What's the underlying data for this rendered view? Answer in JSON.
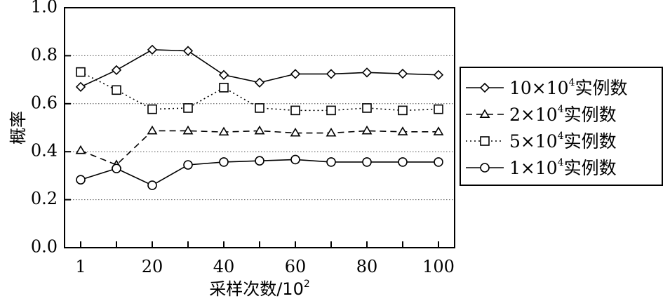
{
  "chart_data": {
    "type": "line",
    "title": "",
    "xlabel": "采样次数/10",
    "xlabel_sup": "2",
    "ylabel": "概率",
    "x_tick_labels": [
      "1",
      "20",
      "40",
      "60",
      "80",
      "100"
    ],
    "x_tick_count": 11,
    "y_ticks": [
      0.0,
      0.2,
      0.4,
      0.6,
      0.8,
      1.0
    ],
    "y_tick_labels": [
      "0.0",
      "0.2",
      "0.4",
      "0.6",
      "0.8",
      "1.0"
    ],
    "ylim": [
      0,
      1.0
    ],
    "grid": "horizontal dotted",
    "legend_position": "right",
    "series": [
      {
        "name": "10×10⁴实例数",
        "legend_main": "10×10",
        "legend_sup": "4",
        "legend_suffix": "实例数",
        "marker": "diamond",
        "dash": "solid",
        "values": [
          0.67,
          0.74,
          0.825,
          0.82,
          0.72,
          0.688,
          0.724,
          0.724,
          0.73,
          0.725,
          0.72
        ]
      },
      {
        "name": "2×10⁴实例数",
        "legend_main": "2×10",
        "legend_sup": "4",
        "legend_suffix": "实例数",
        "marker": "triangle",
        "dash": "dashed",
        "values": [
          0.405,
          0.345,
          0.487,
          0.487,
          0.482,
          0.487,
          0.478,
          0.478,
          0.487,
          0.483,
          0.483
        ]
      },
      {
        "name": "5×10⁴实例数",
        "legend_main": "5×10",
        "legend_sup": "4",
        "legend_suffix": "实例数",
        "marker": "square",
        "dash": "dotted",
        "values": [
          0.732,
          0.657,
          0.577,
          0.582,
          0.667,
          0.582,
          0.572,
          0.572,
          0.582,
          0.572,
          0.577
        ]
      },
      {
        "name": "1×10⁴实例数",
        "legend_main": "1×10",
        "legend_sup": "4",
        "legend_suffix": "实例数",
        "marker": "circle",
        "dash": "solid",
        "values": [
          0.283,
          0.33,
          0.26,
          0.345,
          0.357,
          0.362,
          0.367,
          0.357,
          0.357,
          0.357,
          0.357
        ]
      }
    ]
  }
}
